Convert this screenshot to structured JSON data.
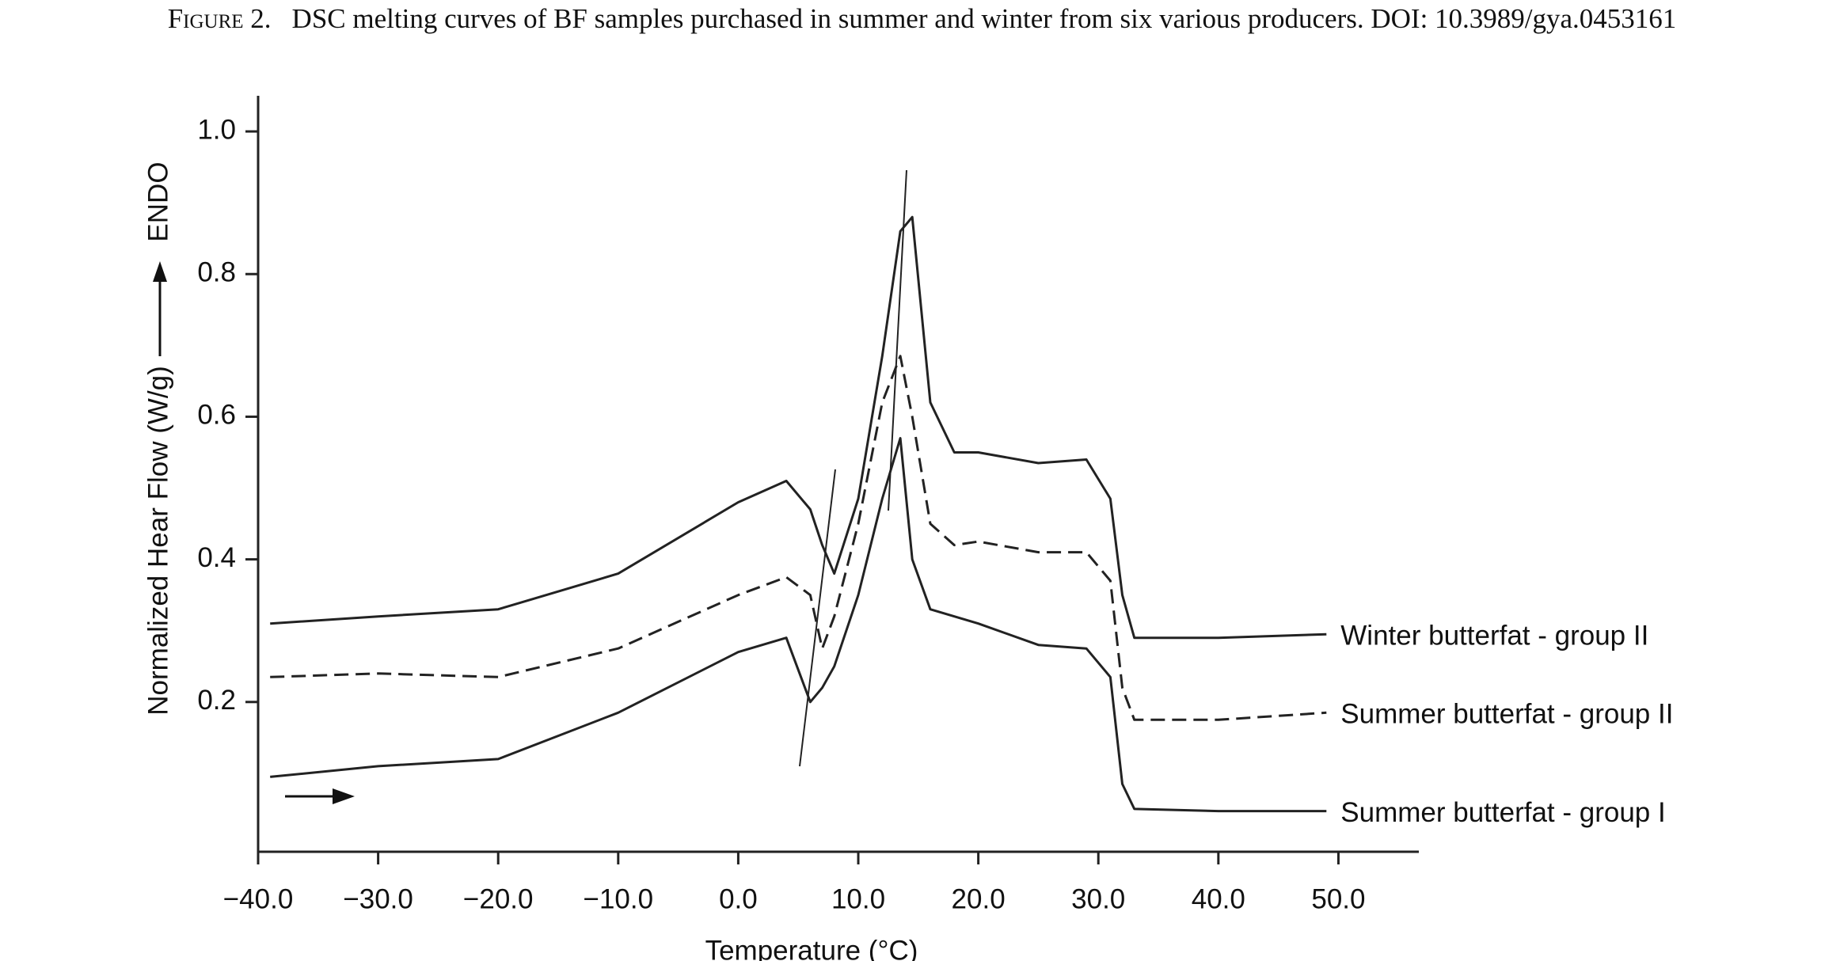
{
  "chart_data": {
    "type": "line",
    "caption_label": "Figure 2.",
    "title": "DSC melting curves of BF samples purchased in summer and winter from six various producers. DOI: 10.3989/gya.0453161",
    "xlabel": "Temperature (°C)",
    "ylabel": "Normalized Hear Flow (W/g)",
    "ylabel_direction": "ENDO",
    "xlim": [
      -40,
      56.7
    ],
    "ylim": [
      -0.01,
      1.05
    ],
    "xticks": [
      {
        "value": -40,
        "label": "−40.0"
      },
      {
        "value": -30,
        "label": "−30.0"
      },
      {
        "value": -20,
        "label": "−20.0"
      },
      {
        "value": -10,
        "label": "−10.0"
      },
      {
        "value": 0,
        "label": "0.0"
      },
      {
        "value": 10,
        "label": "10.0"
      },
      {
        "value": 20,
        "label": "20.0"
      },
      {
        "value": 30,
        "label": "30.0"
      },
      {
        "value": 40,
        "label": "40.0"
      },
      {
        "value": 50,
        "label": "50.0"
      }
    ],
    "yticks": [
      0.2,
      0.4,
      0.6,
      0.8,
      {
        "value": 1,
        "label": "1.0"
      }
    ],
    "x": [
      -39,
      -30,
      -20,
      -10,
      0,
      4,
      6,
      7,
      8,
      10,
      12,
      13.5,
      14.5,
      16,
      18,
      20,
      25,
      29,
      31,
      32,
      33,
      40,
      49
    ],
    "series": [
      {
        "name": "Winter butterfat - group II",
        "color": "#222222",
        "dashed": false,
        "values": [
          0.31,
          0.32,
          0.33,
          0.38,
          0.48,
          0.51,
          0.47,
          0.42,
          0.38,
          0.485,
          0.685,
          0.86,
          0.88,
          0.62,
          0.55,
          0.55,
          0.535,
          0.54,
          0.485,
          0.35,
          0.29,
          0.29,
          0.295
        ]
      },
      {
        "name": "Summer butterfat - group II",
        "color": "#222222",
        "dashed": true,
        "values": [
          0.235,
          0.24,
          0.235,
          0.275,
          0.35,
          0.375,
          0.35,
          0.275,
          0.32,
          0.45,
          0.62,
          0.685,
          0.6,
          0.45,
          0.42,
          0.425,
          0.41,
          0.41,
          0.37,
          0.22,
          0.175,
          0.175,
          0.185
        ]
      },
      {
        "name": "Summer butterfat - group I",
        "color": "#222222",
        "dashed": false,
        "values": [
          0.095,
          0.11,
          0.12,
          0.185,
          0.27,
          0.29,
          0.2,
          0.22,
          0.25,
          0.35,
          0.485,
          0.57,
          0.4,
          0.33,
          0.32,
          0.31,
          0.28,
          0.275,
          0.235,
          0.085,
          0.05,
          0.047,
          0.047
        ]
      }
    ]
  }
}
